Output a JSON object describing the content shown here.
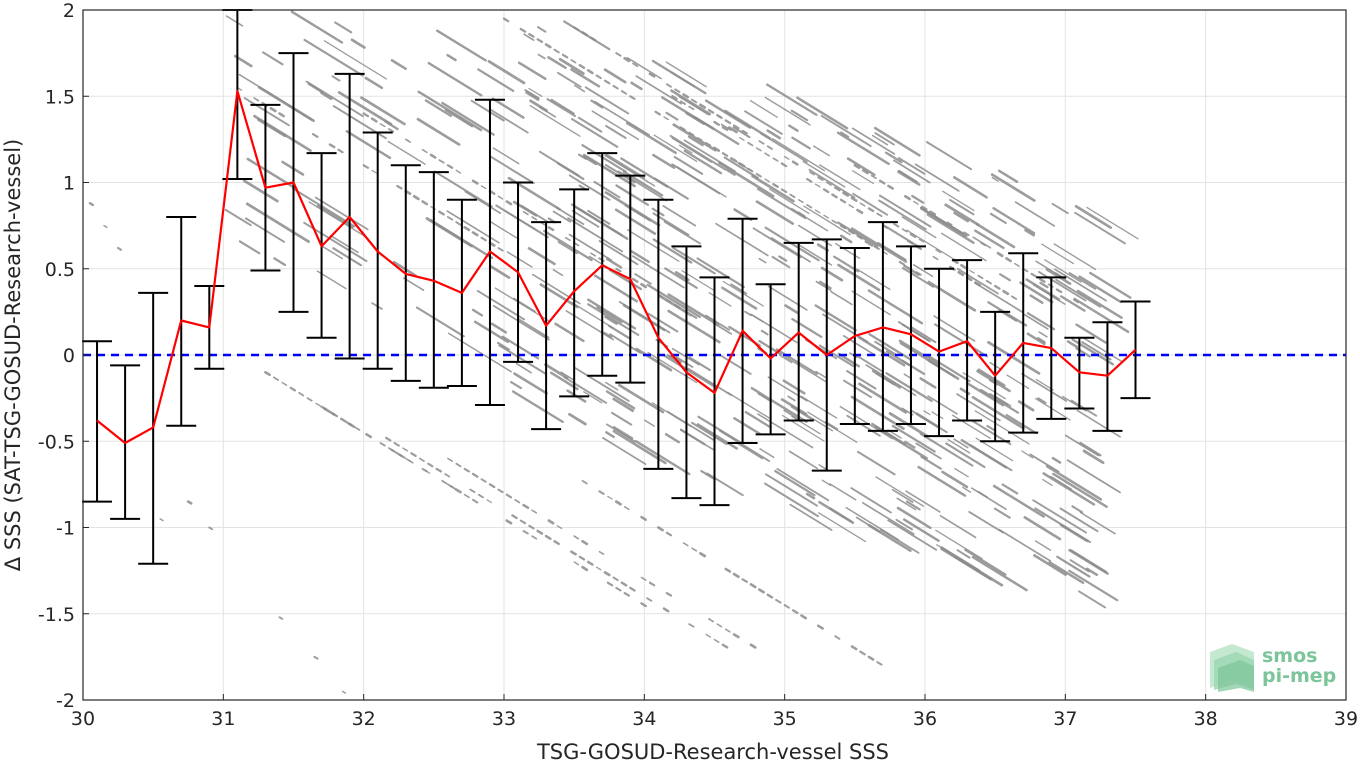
{
  "chart_data": {
    "type": "scatter",
    "xlabel": "TSG-GOSUD-Research-vessel SSS",
    "ylabel": "Δ SSS (SAT-TSG-GOSUD-Research-vessel)",
    "xlim": [
      30,
      39
    ],
    "ylim": [
      -2,
      2
    ],
    "xticks": [
      "30",
      "31",
      "32",
      "33",
      "34",
      "35",
      "36",
      "37",
      "38",
      "39"
    ],
    "yticks": [
      "2",
      "1.5",
      "1",
      "0.5",
      "0",
      "-0.5",
      "-1",
      "-1.5",
      "-2"
    ],
    "grid": true,
    "reference_line_y": 0,
    "series": [
      {
        "role": "binned-mean",
        "color": "#ff0000",
        "x": [
          30.1,
          30.3,
          30.5,
          30.7,
          30.9,
          31.1,
          31.3,
          31.5,
          31.7,
          31.9,
          32.1,
          32.3,
          32.5,
          32.7,
          32.9,
          33.1,
          33.3,
          33.5,
          33.7,
          33.9,
          34.1,
          34.3,
          34.5,
          34.7,
          34.9,
          35.1,
          35.3,
          35.5,
          35.7,
          35.9,
          36.1,
          36.3,
          36.5,
          36.7,
          36.9,
          37.1,
          37.3,
          37.5
        ],
        "y": [
          -0.38,
          -0.51,
          -0.42,
          0.2,
          0.16,
          1.53,
          0.97,
          1.0,
          0.63,
          0.8,
          0.6,
          0.47,
          0.43,
          0.36,
          0.6,
          0.48,
          0.17,
          0.37,
          0.52,
          0.44,
          0.1,
          -0.1,
          -0.22,
          0.14,
          -0.02,
          0.13,
          0.0,
          0.11,
          0.16,
          0.12,
          0.02,
          0.08,
          -0.12,
          0.07,
          0.04,
          -0.1,
          -0.12,
          0.03
        ],
        "err_low": [
          -0.85,
          -0.95,
          -1.21,
          -0.41,
          -0.08,
          1.02,
          0.49,
          0.25,
          0.1,
          -0.02,
          -0.08,
          -0.15,
          -0.19,
          -0.18,
          -0.29,
          -0.04,
          -0.43,
          -0.24,
          -0.12,
          -0.16,
          -0.66,
          -0.83,
          -0.87,
          -0.51,
          -0.46,
          -0.38,
          -0.67,
          -0.4,
          -0.44,
          -0.4,
          -0.47,
          -0.38,
          -0.5,
          -0.45,
          -0.37,
          -0.31,
          -0.44,
          -0.25
        ],
        "err_high": [
          0.08,
          -0.06,
          0.36,
          0.8,
          0.4,
          2.0,
          1.45,
          1.75,
          1.17,
          1.63,
          1.29,
          1.1,
          1.06,
          0.9,
          1.48,
          1.0,
          0.77,
          0.96,
          1.17,
          1.04,
          0.9,
          0.63,
          0.45,
          0.79,
          0.41,
          0.65,
          0.67,
          0.62,
          0.77,
          0.63,
          0.5,
          0.55,
          0.25,
          0.59,
          0.45,
          0.1,
          0.19,
          0.31
        ]
      }
    ],
    "scatter_color": "#8c8c8c",
    "scatter_density": "dense diagonal streaks, mostly 33-37 SSS",
    "reference_line_color": "#0000ff",
    "errorbar_color": "#000000"
  },
  "logo": {
    "line1": "smos",
    "line2": "pi-mep"
  }
}
